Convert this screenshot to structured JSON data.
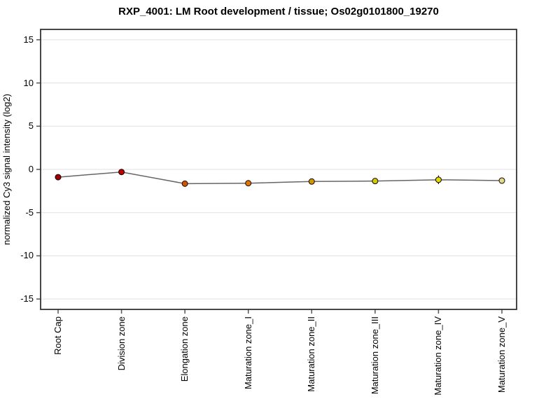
{
  "page": {
    "background_color": "#ffffff"
  },
  "chart_data": {
    "type": "line",
    "title": "RXP_4001: LM Root development / tissue; Os02g0101800_19270",
    "ylabel": "normalized Cy3 signal intensity (log2)",
    "xlabel": "",
    "categories": [
      "Root Cap",
      "Division zone",
      "Elongation zone",
      "Maturation zone_I",
      "Maturation zone_II",
      "Maturation zone_III",
      "Maturation zone_IV",
      "Maturation zone_V"
    ],
    "values": [
      -0.9,
      -0.3,
      -1.65,
      -1.6,
      -1.4,
      -1.35,
      -1.2,
      -1.3
    ],
    "errors": [
      0.15,
      0.35,
      0.25,
      0.3,
      0.3,
      0.25,
      0.5,
      0.25
    ],
    "point_colors": [
      "#990000",
      "#bb0000",
      "#cc5500",
      "#dd7700",
      "#cc9900",
      "#cccc00",
      "#dddd00",
      "#dddd88"
    ],
    "yticks": [
      15,
      10,
      5,
      0,
      -5,
      -10,
      -15
    ],
    "ylim": [
      -16.2,
      16.2
    ],
    "grid": true,
    "legend": "none",
    "colors": {
      "line": "#666666",
      "gridline": "#e0e0e0",
      "plot_border": "#333333",
      "tick": "#555555",
      "error_bar": "#111111",
      "point_outline": "#1a0000"
    }
  }
}
